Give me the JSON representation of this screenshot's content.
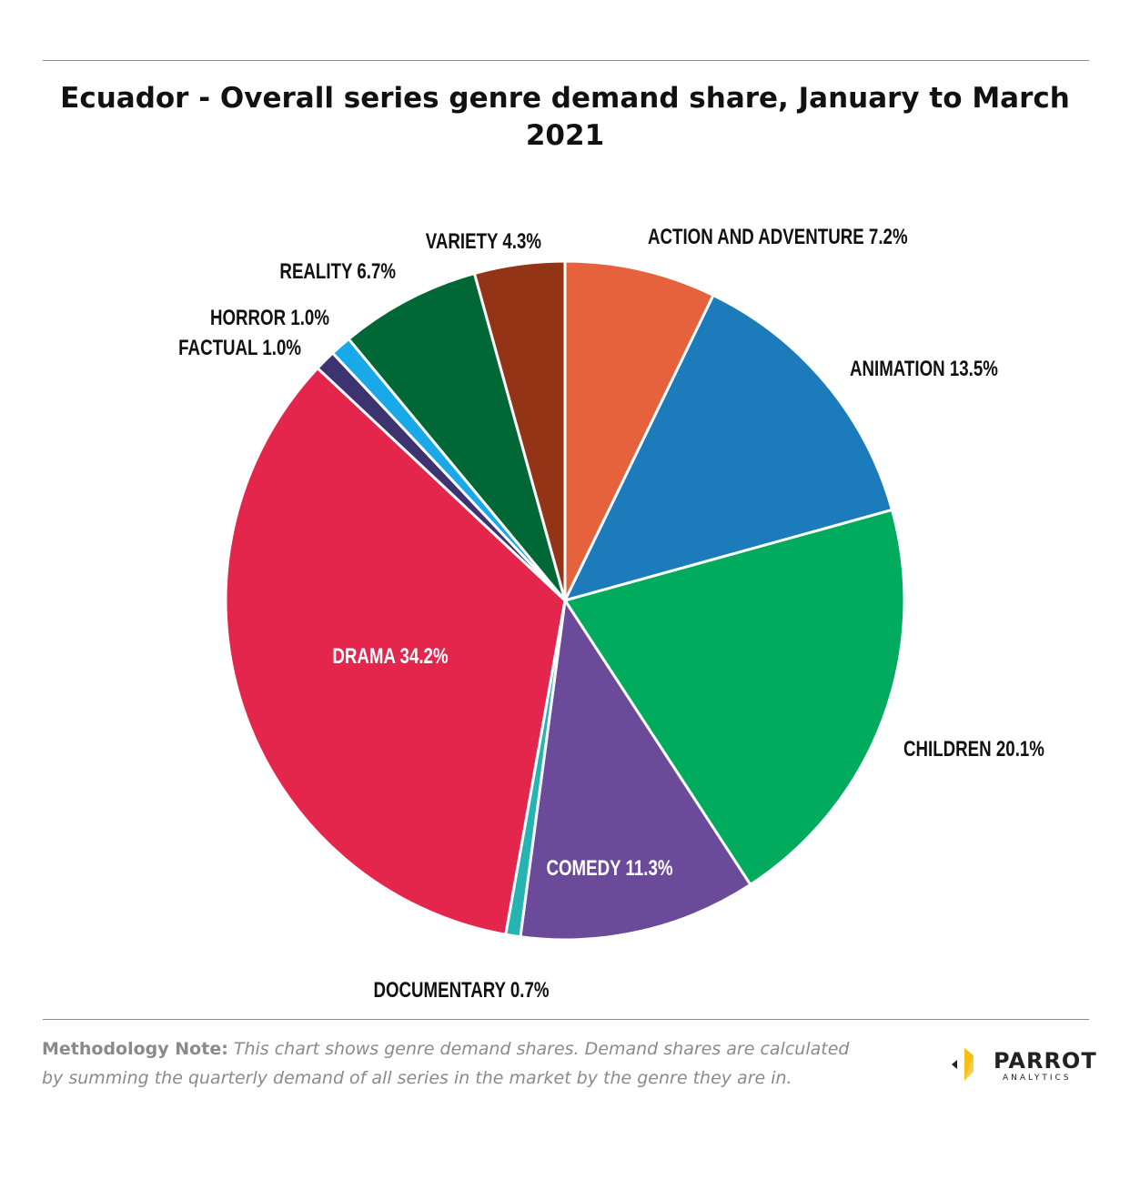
{
  "title": "Ecuador - Overall series genre demand share, January to March 2021",
  "chart_data": {
    "type": "pie",
    "slices": [
      {
        "label": "ACTION AND ADVENTURE",
        "value": 7.2,
        "display": "7.2%",
        "color": "#e5623c"
      },
      {
        "label": "ANIMATION",
        "value": 13.5,
        "display": "13.5%",
        "color": "#1b7bbb"
      },
      {
        "label": "CHILDREN",
        "value": 20.1,
        "display": "20.1%",
        "color": "#00ab5e"
      },
      {
        "label": "COMEDY",
        "value": 11.3,
        "display": "11.3%",
        "color": "#6c4a9a"
      },
      {
        "label": "DOCUMENTARY",
        "value": 0.7,
        "display": "0.7%",
        "color": "#26b4b3"
      },
      {
        "label": "DRAMA",
        "value": 34.2,
        "display": "34.2%",
        "color": "#e4264d"
      },
      {
        "label": "FACTUAL",
        "value": 1.0,
        "display": "1.0%",
        "color": "#3d3370"
      },
      {
        "label": "HORROR",
        "value": 1.0,
        "display": "1.0%",
        "color": "#1aa9e8"
      },
      {
        "label": "REALITY",
        "value": 6.7,
        "display": "6.7%",
        "color": "#006837"
      },
      {
        "label": "VARIETY",
        "value": 4.3,
        "display": "4.3%",
        "color": "#923415"
      }
    ]
  },
  "footer": {
    "note_label": "Methodology Note:",
    "note_text": "This chart shows genre demand shares. Demand shares are calculated by summing the quarterly demand of all series in the market by the genre they are in."
  },
  "logo": {
    "name": "PARROT",
    "sub": "ANALYTICS"
  }
}
